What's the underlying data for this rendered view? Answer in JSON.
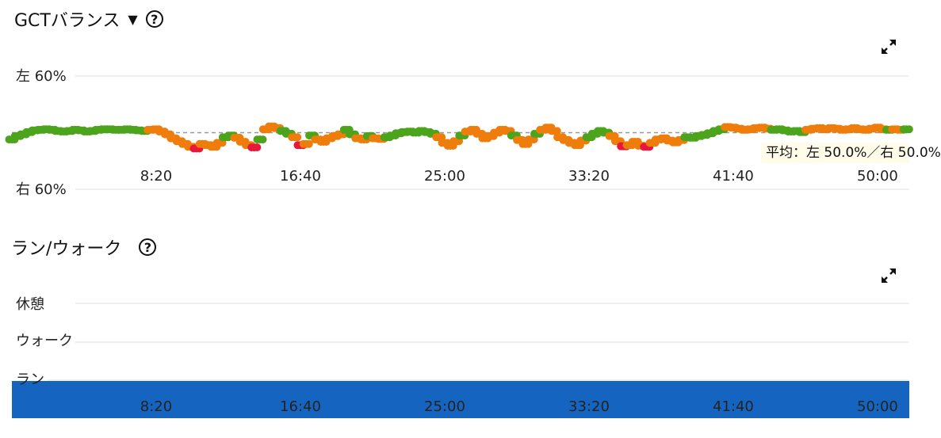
{
  "gct": {
    "title": "GCTバランス",
    "caret": "▼",
    "help": "?",
    "tooltip": "平均：左 50.0%／右 50.0%",
    "chart_data": {
      "type": "scatter",
      "ylabel_top": "左 60%",
      "ylabel_bottom": "右 60%",
      "x_ticks": [
        "8:20",
        "16:40",
        "25:00",
        "33:20",
        "41:40",
        "50:00"
      ],
      "x_tick_seconds": [
        500,
        1000,
        1500,
        2000,
        2500,
        3000
      ],
      "xlim": [
        0,
        3110
      ],
      "ylim": [
        -10,
        10
      ],
      "average_line": 0,
      "colors": {
        "green": "#4ca41c",
        "orange": "#ef7d0b",
        "red": "#e8173c",
        "avg": "#999999",
        "grid": "#e0e0e0"
      },
      "points": [
        [
          0,
          -1.2,
          "g"
        ],
        [
          20,
          -0.6,
          "g"
        ],
        [
          40,
          -0.3,
          "g"
        ],
        [
          60,
          0.1,
          "g"
        ],
        [
          80,
          0.4,
          "g"
        ],
        [
          100,
          0.5,
          "g"
        ],
        [
          120,
          0.6,
          "g"
        ],
        [
          140,
          0.5,
          "g"
        ],
        [
          160,
          0.3,
          "g"
        ],
        [
          180,
          0.2,
          "g"
        ],
        [
          200,
          0.3,
          "g"
        ],
        [
          220,
          0.5,
          "g"
        ],
        [
          240,
          0.4,
          "g"
        ],
        [
          260,
          0.2,
          "g"
        ],
        [
          280,
          0.3,
          "g"
        ],
        [
          300,
          0.5,
          "g"
        ],
        [
          320,
          0.6,
          "g"
        ],
        [
          340,
          0.6,
          "g"
        ],
        [
          360,
          0.5,
          "g"
        ],
        [
          380,
          0.5,
          "g"
        ],
        [
          400,
          0.6,
          "g"
        ],
        [
          420,
          0.5,
          "g"
        ],
        [
          440,
          0.4,
          "g"
        ],
        [
          460,
          0.3,
          "g"
        ],
        [
          480,
          0.5,
          "o"
        ],
        [
          500,
          0.6,
          "o"
        ],
        [
          520,
          0.2,
          "o"
        ],
        [
          540,
          -0.3,
          "o"
        ],
        [
          560,
          -1.0,
          "o"
        ],
        [
          580,
          -1.5,
          "o"
        ],
        [
          600,
          -2.0,
          "o"
        ],
        [
          620,
          -2.5,
          "o"
        ],
        [
          640,
          -2.8,
          "r"
        ],
        [
          660,
          -2.0,
          "o"
        ],
        [
          680,
          -2.2,
          "o"
        ],
        [
          700,
          -2.5,
          "o"
        ],
        [
          720,
          -1.8,
          "o"
        ],
        [
          740,
          -0.8,
          "g"
        ],
        [
          760,
          -0.5,
          "g"
        ],
        [
          780,
          -0.9,
          "o"
        ],
        [
          800,
          -1.6,
          "o"
        ],
        [
          820,
          -2.2,
          "o"
        ],
        [
          840,
          -2.6,
          "r"
        ],
        [
          860,
          -1.2,
          "g"
        ],
        [
          880,
          0.6,
          "o"
        ],
        [
          900,
          1.1,
          "o"
        ],
        [
          920,
          0.8,
          "o"
        ],
        [
          940,
          0.3,
          "g"
        ],
        [
          960,
          -0.2,
          "g"
        ],
        [
          980,
          -0.8,
          "o"
        ],
        [
          1000,
          -2.2,
          "r"
        ],
        [
          1020,
          -2.0,
          "o"
        ],
        [
          1040,
          -0.5,
          "g"
        ],
        [
          1060,
          -1.2,
          "o"
        ],
        [
          1080,
          -1.6,
          "o"
        ],
        [
          1100,
          -1.0,
          "o"
        ],
        [
          1120,
          -0.6,
          "o"
        ],
        [
          1140,
          -0.3,
          "o"
        ],
        [
          1160,
          0.5,
          "g"
        ],
        [
          1180,
          -0.3,
          "g"
        ],
        [
          1200,
          -1.0,
          "o"
        ],
        [
          1220,
          -1.2,
          "o"
        ],
        [
          1240,
          -0.6,
          "g"
        ],
        [
          1260,
          -1.0,
          "o"
        ],
        [
          1280,
          -1.1,
          "o"
        ],
        [
          1300,
          -0.8,
          "g"
        ],
        [
          1320,
          -0.5,
          "g"
        ],
        [
          1340,
          -0.1,
          "g"
        ],
        [
          1360,
          0.1,
          "g"
        ],
        [
          1380,
          0.2,
          "g"
        ],
        [
          1400,
          0.0,
          "g"
        ],
        [
          1420,
          0.3,
          "g"
        ],
        [
          1440,
          0.1,
          "g"
        ],
        [
          1460,
          -0.2,
          "g"
        ],
        [
          1480,
          -0.8,
          "o"
        ],
        [
          1500,
          -1.8,
          "o"
        ],
        [
          1520,
          -2.3,
          "o"
        ],
        [
          1540,
          -1.5,
          "o"
        ],
        [
          1560,
          -0.5,
          "g"
        ],
        [
          1580,
          0.2,
          "o"
        ],
        [
          1600,
          0.5,
          "o"
        ],
        [
          1620,
          -0.2,
          "o"
        ],
        [
          1640,
          -1.0,
          "o"
        ],
        [
          1660,
          -0.6,
          "o"
        ],
        [
          1680,
          0.0,
          "o"
        ],
        [
          1700,
          0.5,
          "o"
        ],
        [
          1720,
          0.3,
          "o"
        ],
        [
          1740,
          -0.5,
          "g"
        ],
        [
          1760,
          -1.3,
          "o"
        ],
        [
          1780,
          -2.0,
          "o"
        ],
        [
          1800,
          -1.2,
          "o"
        ],
        [
          1820,
          -0.2,
          "g"
        ],
        [
          1840,
          0.5,
          "o"
        ],
        [
          1860,
          0.9,
          "o"
        ],
        [
          1880,
          0.3,
          "o"
        ],
        [
          1900,
          -0.8,
          "o"
        ],
        [
          1920,
          -1.3,
          "o"
        ],
        [
          1940,
          -1.8,
          "o"
        ],
        [
          1960,
          -2.2,
          "o"
        ],
        [
          1980,
          -1.4,
          "o"
        ],
        [
          2000,
          -0.8,
          "g"
        ],
        [
          2020,
          -0.2,
          "g"
        ],
        [
          2040,
          0.3,
          "g"
        ],
        [
          2060,
          0.0,
          "g"
        ],
        [
          2080,
          -0.6,
          "o"
        ],
        [
          2100,
          -1.5,
          "o"
        ],
        [
          2120,
          -2.4,
          "r"
        ],
        [
          2140,
          -2.2,
          "o"
        ],
        [
          2160,
          -1.6,
          "o"
        ],
        [
          2180,
          -2.3,
          "o"
        ],
        [
          2200,
          -2.5,
          "r"
        ],
        [
          2220,
          -1.8,
          "o"
        ],
        [
          2240,
          -1.2,
          "o"
        ],
        [
          2260,
          -1.0,
          "o"
        ],
        [
          2280,
          -1.4,
          "o"
        ],
        [
          2300,
          -1.7,
          "o"
        ],
        [
          2320,
          -1.3,
          "o"
        ],
        [
          2340,
          -0.8,
          "g"
        ],
        [
          2360,
          -0.9,
          "g"
        ],
        [
          2380,
          -0.6,
          "g"
        ],
        [
          2400,
          -0.4,
          "g"
        ],
        [
          2420,
          -0.1,
          "g"
        ],
        [
          2440,
          0.3,
          "g"
        ],
        [
          2460,
          0.6,
          "g"
        ],
        [
          2480,
          1.0,
          "o"
        ],
        [
          2500,
          0.9,
          "o"
        ],
        [
          2520,
          0.7,
          "o"
        ],
        [
          2540,
          0.5,
          "o"
        ],
        [
          2560,
          0.6,
          "o"
        ],
        [
          2580,
          0.8,
          "o"
        ],
        [
          2600,
          0.9,
          "o"
        ],
        [
          2620,
          0.7,
          "o"
        ],
        [
          2640,
          0.5,
          "g"
        ],
        [
          2660,
          0.6,
          "g"
        ],
        [
          2680,
          0.4,
          "g"
        ],
        [
          2700,
          0.2,
          "g"
        ],
        [
          2720,
          0.3,
          "g"
        ],
        [
          2740,
          0.1,
          "g"
        ],
        [
          2760,
          0.5,
          "o"
        ],
        [
          2780,
          0.7,
          "o"
        ],
        [
          2800,
          0.8,
          "o"
        ],
        [
          2820,
          0.6,
          "o"
        ],
        [
          2840,
          0.8,
          "o"
        ],
        [
          2860,
          0.7,
          "o"
        ],
        [
          2880,
          0.5,
          "o"
        ],
        [
          2900,
          0.6,
          "o"
        ],
        [
          2920,
          0.8,
          "o"
        ],
        [
          2940,
          0.6,
          "o"
        ],
        [
          2960,
          0.5,
          "o"
        ],
        [
          2980,
          0.7,
          "o"
        ],
        [
          3000,
          0.9,
          "o"
        ],
        [
          3020,
          0.6,
          "o"
        ],
        [
          3040,
          0.5,
          "g"
        ],
        [
          3060,
          0.6,
          "o"
        ],
        [
          3080,
          0.5,
          "o"
        ],
        [
          3100,
          0.6,
          "g"
        ]
      ]
    }
  },
  "runwalk": {
    "title": "ラン/ウォーク",
    "help": "?",
    "chart_data": {
      "type": "bar",
      "categories": [
        "休憩",
        "ウォーク",
        "ラン"
      ],
      "x_ticks": [
        "8:20",
        "16:40",
        "25:00",
        "33:20",
        "41:40",
        "50:00"
      ],
      "x_tick_seconds": [
        500,
        1000,
        1500,
        2000,
        2500,
        3000
      ],
      "xlim": [
        0,
        3110
      ],
      "segments": [
        {
          "state": "ラン",
          "start": 0,
          "end": 3110
        }
      ],
      "colors": {
        "run": "#1565c0",
        "grid": "#e0e0e0"
      }
    }
  }
}
